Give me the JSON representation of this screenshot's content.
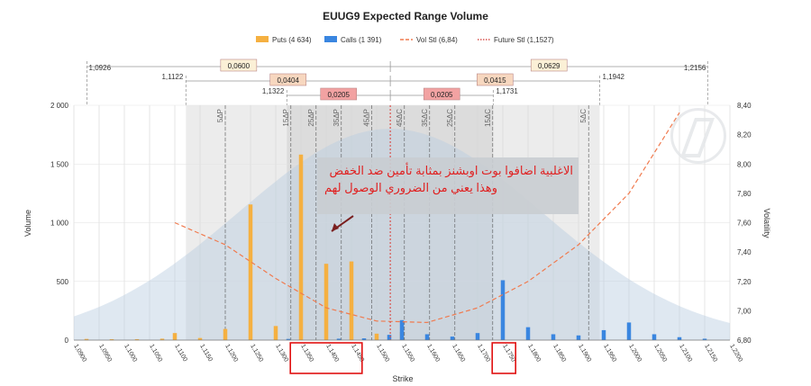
{
  "chart_data": {
    "type": "bar",
    "title": "EUUG9 Expected Range Volume",
    "xlabel": "Strike",
    "ylabel": "Volume",
    "y2label": "Volatility",
    "ylim": [
      0,
      2000
    ],
    "y2lim": [
      6.8,
      8.4
    ],
    "xlim": [
      1.09,
      1.22
    ],
    "yticks": [
      "0",
      "500",
      "1 000",
      "1 500",
      "2 000"
    ],
    "y2ticks": [
      "6,80",
      "7,00",
      "7,20",
      "7,40",
      "7,60",
      "7,80",
      "8,00",
      "8,20",
      "8,40"
    ],
    "xticks": [
      "1,0900",
      "1,0950",
      "1,1000",
      "1,1050",
      "1,1100",
      "1,1150",
      "1,1200",
      "1,1250",
      "1,1300",
      "1,1350",
      "1,1400",
      "1,1450",
      "1,1500",
      "1,1550",
      "1,1600",
      "1,1650",
      "1,1700",
      "1,1750",
      "1,1800",
      "1,1850",
      "1,1900",
      "1,1950",
      "1,2000",
      "1,2050",
      "1,2100",
      "1,2150",
      "1,2200"
    ],
    "grid": true,
    "legend_position": "top",
    "legend": [
      {
        "label": "Puts (4 634)",
        "kind": "bar",
        "color": "#f5b041"
      },
      {
        "label": "Calls (1 391)",
        "kind": "bar",
        "color": "#3a86e0"
      },
      {
        "label": "Vol Stl (6,84)",
        "kind": "dashed",
        "color": "#f07a4e"
      },
      {
        "label": "Future Stl (1,1527)",
        "kind": "dotted",
        "color": "#d9534f"
      }
    ],
    "series": [
      {
        "name": "Puts (4 634)",
        "color": "#f5b041",
        "x": [
          1.0925,
          1.0975,
          1.1025,
          1.1075,
          1.11,
          1.115,
          1.12,
          1.125,
          1.13,
          1.135,
          1.14,
          1.145,
          1.15,
          1.155,
          1.16
        ],
        "values": [
          10,
          8,
          8,
          12,
          60,
          18,
          95,
          1155,
          120,
          1580,
          650,
          670,
          55,
          70,
          10
        ]
      },
      {
        "name": "Calls (1 391)",
        "color": "#3a86e0",
        "x": [
          1.1325,
          1.1425,
          1.1475,
          1.1525,
          1.155,
          1.16,
          1.165,
          1.17,
          1.175,
          1.18,
          1.185,
          1.19,
          1.195,
          1.2,
          1.205,
          1.21,
          1.215
        ],
        "values": [
          10,
          12,
          15,
          45,
          170,
          50,
          30,
          60,
          510,
          110,
          50,
          40,
          85,
          150,
          50,
          25,
          12
        ]
      }
    ],
    "vol_curve": {
      "name": "Vol Stl (6,84)",
      "color": "#f07a4e",
      "x": [
        1.11,
        1.12,
        1.13,
        1.14,
        1.15,
        1.16,
        1.17,
        1.18,
        1.19,
        1.2,
        1.21
      ],
      "values": [
        7.6,
        7.45,
        7.22,
        7.02,
        6.93,
        6.92,
        7.02,
        7.2,
        7.45,
        7.8,
        8.35
      ]
    },
    "future_settle": 1.1527,
    "distribution_peak_volume": 1800,
    "strike_labels": [
      {
        "x": 1.12,
        "label": "5ΔP"
      },
      {
        "x": 1.133,
        "label": "15ΔP"
      },
      {
        "x": 1.138,
        "label": "25ΔP"
      },
      {
        "x": 1.143,
        "label": "35ΔP"
      },
      {
        "x": 1.149,
        "label": "45ΔP"
      },
      {
        "x": 1.1555,
        "label": "45ΔC"
      },
      {
        "x": 1.1605,
        "label": "35ΔC"
      },
      {
        "x": 1.1655,
        "label": "25ΔC"
      },
      {
        "x": 1.173,
        "label": "15ΔC"
      },
      {
        "x": 1.192,
        "label": "5ΔC"
      }
    ],
    "range_brackets": [
      {
        "left": "1,0926",
        "right": "1,2156",
        "left_value": 1.0926,
        "right_value": 1.2156,
        "left_width": "0,0600",
        "right_width": "0,0629"
      },
      {
        "left": "1,1122",
        "right": "1,1942",
        "left_value": 1.1122,
        "right_value": 1.1942,
        "left_width": "0,0404",
        "right_width": "0,0415"
      },
      {
        "left": "1,1322",
        "right": "1,1731",
        "left_value": 1.1322,
        "right_value": 1.1731,
        "left_width": "0,0205",
        "right_width": "0,0205"
      }
    ],
    "annotation": {
      "line1": "الاغلبية اضافوا بوت اوبشنز بمثابة تأمين ضد الخفض",
      "line2": "وهذا يعني من الضروري الوصول لهم",
      "color": "#e02020"
    }
  }
}
